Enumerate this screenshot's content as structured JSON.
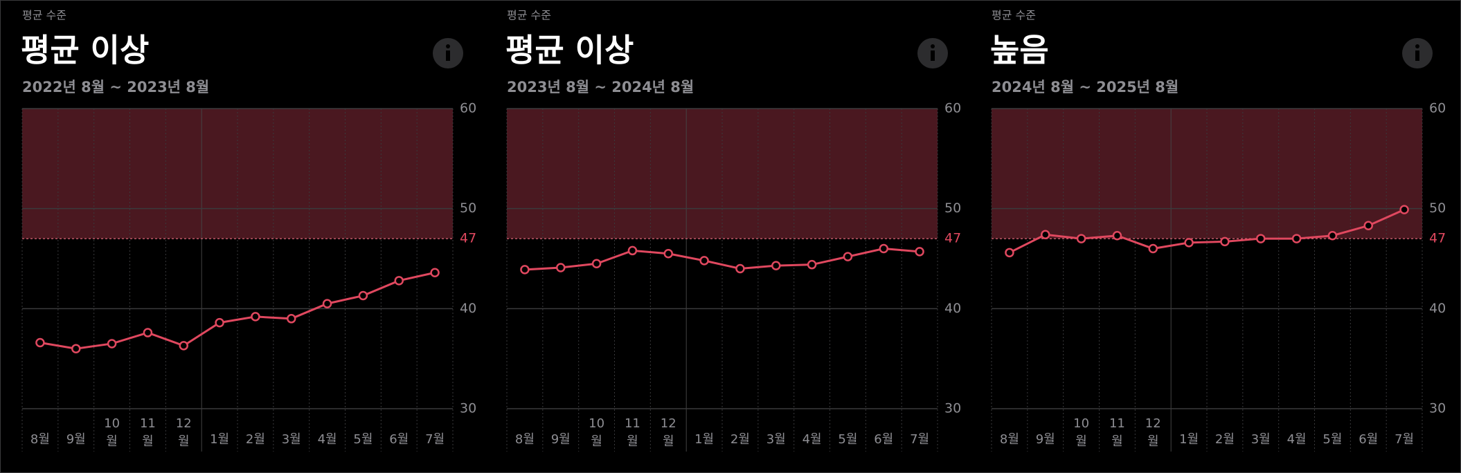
{
  "chart_data": [
    {
      "type": "line",
      "label": "평균 수준",
      "title": "평균 이상",
      "subtitle": "2022년 8월 ~ 2023년 8월",
      "categories": [
        "8월",
        "9월",
        "10월",
        "11월",
        "12월",
        "1월",
        "2월",
        "3월",
        "4월",
        "5월",
        "6월",
        "7월"
      ],
      "values": [
        36.6,
        36.0,
        36.5,
        37.6,
        36.3,
        38.6,
        39.2,
        39.0,
        40.5,
        41.3,
        42.8,
        43.6
      ],
      "color": "#e0485f",
      "ylim": [
        30,
        60
      ],
      "yticks": [
        30,
        40,
        50,
        60
      ],
      "threshold": 47,
      "band_color": "#4a1820",
      "grid": true
    },
    {
      "type": "line",
      "label": "평균 수준",
      "title": "평균 이상",
      "subtitle": "2023년 8월 ~ 2024년 8월",
      "categories": [
        "8월",
        "9월",
        "10월",
        "11월",
        "12월",
        "1월",
        "2월",
        "3월",
        "4월",
        "5월",
        "6월",
        "7월"
      ],
      "values": [
        43.9,
        44.1,
        44.5,
        45.8,
        45.5,
        44.8,
        44.0,
        44.3,
        44.4,
        45.2,
        46.0,
        45.7
      ],
      "color": "#e0485f",
      "ylim": [
        30,
        60
      ],
      "yticks": [
        30,
        40,
        50,
        60
      ],
      "threshold": 47,
      "band_color": "#4a1820",
      "grid": true
    },
    {
      "type": "line",
      "label": "평균 수준",
      "title": "높음",
      "subtitle": "2024년 8월 ~ 2025년 8월",
      "categories": [
        "8월",
        "9월",
        "10월",
        "11월",
        "12월",
        "1월",
        "2월",
        "3월",
        "4월",
        "5월",
        "6월",
        "7월"
      ],
      "values": [
        45.6,
        47.4,
        47.0,
        47.3,
        46.0,
        46.6,
        46.7,
        47.0,
        47.0,
        47.3,
        48.3,
        49.9
      ],
      "color": "#e0485f",
      "ylim": [
        30,
        60
      ],
      "yticks": [
        30,
        40,
        50,
        60
      ],
      "threshold": 47,
      "band_color": "#4a1820",
      "grid": true
    }
  ]
}
